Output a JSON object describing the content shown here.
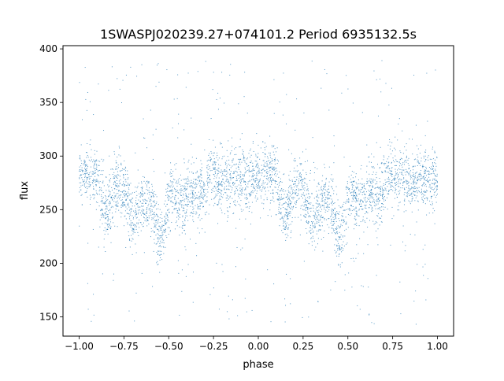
{
  "chart_data": {
    "type": "scatter",
    "title": "1SWASPJ020239.27+074101.2 Period 6935132.5s",
    "xlabel": "phase",
    "ylabel": "flux",
    "xlim": [
      -1.09,
      1.09
    ],
    "ylim": [
      132,
      403
    ],
    "xticks": [
      -1.0,
      -0.75,
      -0.5,
      -0.25,
      0.0,
      0.25,
      0.5,
      0.75,
      1.0
    ],
    "xtick_labels": [
      "−1.00",
      "−0.75",
      "−0.50",
      "−0.25",
      "0.00",
      "0.25",
      "0.50",
      "0.75",
      "1.00"
    ],
    "yticks": [
      150,
      200,
      250,
      300,
      350,
      400
    ],
    "ytick_labels": [
      "150",
      "200",
      "250",
      "300",
      "350",
      "400"
    ],
    "grid": false,
    "legend": false,
    "marker_color": "#1f77b4",
    "series": [
      {
        "phase_flux_profile": [
          [
            -1.0,
            280
          ],
          [
            -0.97,
            283
          ],
          [
            -0.93,
            285
          ],
          [
            -0.9,
            282
          ],
          [
            -0.88,
            262
          ],
          [
            -0.85,
            244
          ],
          [
            -0.82,
            258
          ],
          [
            -0.8,
            270
          ],
          [
            -0.77,
            272
          ],
          [
            -0.73,
            258
          ],
          [
            -0.7,
            238
          ],
          [
            -0.67,
            250
          ],
          [
            -0.64,
            255
          ],
          [
            -0.61,
            262
          ],
          [
            -0.58,
            244
          ],
          [
            -0.55,
            222
          ],
          [
            -0.52,
            238
          ],
          [
            -0.49,
            264
          ],
          [
            -0.46,
            262
          ],
          [
            -0.43,
            258
          ],
          [
            -0.4,
            262
          ],
          [
            -0.37,
            268
          ],
          [
            -0.34,
            262
          ],
          [
            -0.31,
            268
          ],
          [
            -0.28,
            280
          ],
          [
            -0.25,
            285
          ],
          [
            -0.22,
            278
          ],
          [
            -0.19,
            280
          ],
          [
            -0.16,
            278
          ],
          [
            -0.13,
            275
          ],
          [
            -0.1,
            280
          ],
          [
            -0.07,
            278
          ],
          [
            -0.04,
            280
          ],
          [
            0.0,
            280
          ],
          [
            0.03,
            283
          ],
          [
            0.07,
            285
          ],
          [
            0.1,
            282
          ],
          [
            0.12,
            262
          ],
          [
            0.15,
            244
          ],
          [
            0.18,
            258
          ],
          [
            0.2,
            270
          ],
          [
            0.23,
            272
          ],
          [
            0.27,
            258
          ],
          [
            0.3,
            238
          ],
          [
            0.33,
            250
          ],
          [
            0.36,
            255
          ],
          [
            0.39,
            262
          ],
          [
            0.42,
            244
          ],
          [
            0.45,
            222
          ],
          [
            0.48,
            238
          ],
          [
            0.51,
            264
          ],
          [
            0.54,
            262
          ],
          [
            0.57,
            258
          ],
          [
            0.6,
            262
          ],
          [
            0.63,
            268
          ],
          [
            0.66,
            262
          ],
          [
            0.69,
            268
          ],
          [
            0.72,
            280
          ],
          [
            0.75,
            285
          ],
          [
            0.78,
            278
          ],
          [
            0.81,
            280
          ],
          [
            0.84,
            278
          ],
          [
            0.87,
            275
          ],
          [
            0.9,
            280
          ],
          [
            0.93,
            278
          ],
          [
            0.96,
            280
          ],
          [
            1.0,
            280
          ]
        ],
        "scatter_sd": 14,
        "outlier_range": [
          143,
          390
        ]
      }
    ]
  }
}
